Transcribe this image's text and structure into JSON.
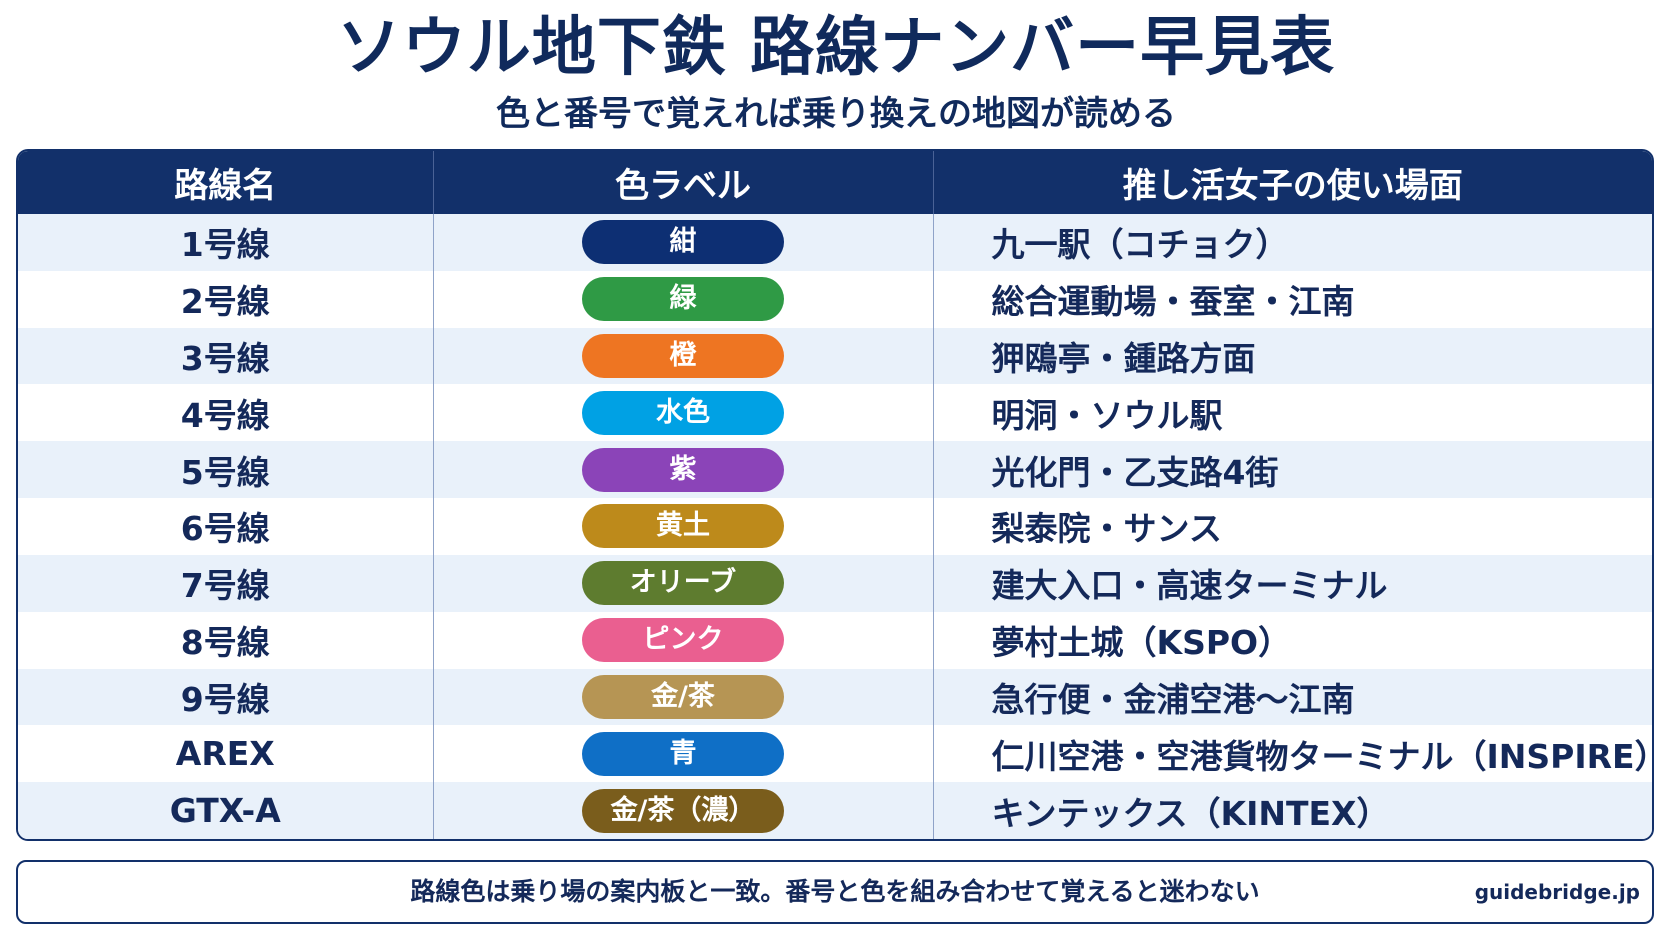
{
  "title": "ソウル地下鉄 路線ナンバー早見表",
  "subtitle": "色と番号で覚えれば乗り換えの地図が読める",
  "table": {
    "headers": [
      "路線名",
      "色ラベル",
      "推し活女子の使い場面"
    ],
    "rows": [
      {
        "line": "1号線",
        "color_label": "紺",
        "color": "#0d2f73",
        "usage": "九一駅（コチョク）"
      },
      {
        "line": "2号線",
        "color_label": "緑",
        "color": "#2f9a45",
        "usage": "総合運動場・蚕室・江南"
      },
      {
        "line": "3号線",
        "color_label": "橙",
        "color": "#ee7522",
        "usage": "狎鴎亭・鍾路方面"
      },
      {
        "line": "4号線",
        "color_label": "水色",
        "color": "#00a1e4",
        "usage": "明洞・ソウル駅"
      },
      {
        "line": "5号線",
        "color_label": "紫",
        "color": "#8b44b8",
        "usage": "光化門・乙支路4街"
      },
      {
        "line": "6号線",
        "color_label": "黄土",
        "color": "#bd8a1b",
        "usage": "梨泰院・サンス"
      },
      {
        "line": "7号線",
        "color_label": "オリーブ",
        "color": "#5e7c2f",
        "usage": "建大入口・高速ターミナル"
      },
      {
        "line": "8号線",
        "color_label": "ピンク",
        "color": "#ea5f90",
        "usage": "夢村土城（KSPO）"
      },
      {
        "line": "9号線",
        "color_label": "金/茶",
        "color": "#b69554",
        "usage": "急行便・金浦空港〜江南"
      },
      {
        "line": "AREX",
        "color_label": "青",
        "color": "#0f6fc6",
        "usage": "仁川空港・空港貨物ターミナル（INSPIRE）"
      },
      {
        "line": "GTX-A",
        "color_label": "金/茶（濃）",
        "color": "#7a5d1c",
        "usage": "キンテックス（KINTEX）"
      }
    ]
  },
  "footer": {
    "note": "路線色は乗り場の案内板と一致。番号と色を組み合わせて覚えると迷わない",
    "brand": "guidebridge.jp"
  },
  "colors": {
    "navy": "#12306a",
    "row_alt": "#e9f1fa"
  }
}
